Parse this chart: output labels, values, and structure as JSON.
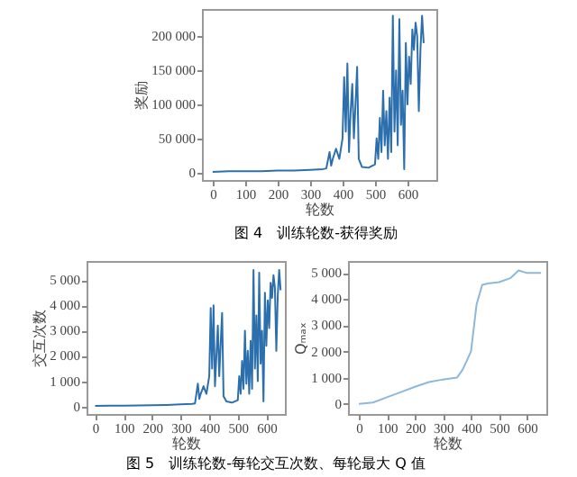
{
  "chart_data": [
    {
      "type": "line",
      "xlabel": "轮数",
      "ylabel": "奖励",
      "annotations": [
        "图 4　训练轮数-获得奖励"
      ],
      "x": [
        0,
        50,
        100,
        150,
        200,
        250,
        300,
        340,
        350,
        360,
        365,
        370,
        380,
        390,
        400,
        405,
        410,
        415,
        420,
        425,
        430,
        435,
        440,
        445,
        450,
        460,
        480,
        500,
        505,
        510,
        515,
        520,
        525,
        530,
        535,
        540,
        545,
        550,
        555,
        560,
        565,
        570,
        575,
        580,
        585,
        590,
        595,
        600,
        605,
        610,
        615,
        620,
        625,
        630,
        635,
        640,
        645,
        650
      ],
      "series": [
        {
          "color": "#2c6fad",
          "values": [
            1000,
            2000,
            2000,
            2000,
            3000,
            3000,
            4000,
            5000,
            6000,
            30000,
            10000,
            20000,
            35000,
            20000,
            50000,
            140000,
            60000,
            160000,
            30000,
            90000,
            130000,
            50000,
            100000,
            155000,
            20000,
            8000,
            7000,
            12000,
            50000,
            20000,
            80000,
            30000,
            120000,
            40000,
            90000,
            20000,
            110000,
            30000,
            230000,
            60000,
            150000,
            40000,
            225000,
            70000,
            120000,
            5000,
            190000,
            100000,
            170000,
            130000,
            210000,
            180000,
            220000,
            200000,
            90000,
            180000,
            230000,
            190000
          ]
        }
      ],
      "xlim": [
        -33,
        689
      ],
      "ylim": [
        -11000,
        240000
      ],
      "xticks": [
        0,
        100,
        200,
        300,
        400,
        500,
        600
      ],
      "yticks": [
        {
          "value": 0,
          "label": "0"
        },
        {
          "value": 50000,
          "label": "50 000"
        },
        {
          "value": 100000,
          "label": "100 000"
        },
        {
          "value": 150000,
          "label": "150 000"
        },
        {
          "value": 200000,
          "label": "200 000"
        }
      ]
    },
    {
      "type": "line",
      "xlabel": "轮数",
      "ylabel": "交互次数",
      "annotations": [
        "图 5　训练轮数-每轮交互次数、每轮最大 Q 值"
      ],
      "x": [
        0,
        50,
        100,
        150,
        200,
        250,
        300,
        340,
        350,
        360,
        365,
        370,
        380,
        390,
        400,
        405,
        410,
        415,
        420,
        425,
        430,
        435,
        440,
        445,
        450,
        460,
        480,
        500,
        505,
        510,
        515,
        520,
        525,
        530,
        535,
        540,
        545,
        550,
        555,
        560,
        565,
        570,
        575,
        580,
        585,
        590,
        595,
        600,
        605,
        610,
        615,
        620,
        625,
        630,
        635,
        640,
        645,
        650
      ],
      "series": [
        {
          "color": "#2c6fad",
          "values": [
            20,
            30,
            30,
            40,
            50,
            60,
            80,
            100,
            120,
            900,
            300,
            500,
            800,
            500,
            1200,
            3900,
            1500,
            4000,
            800,
            2000,
            3200,
            1200,
            2500,
            3700,
            400,
            200,
            150,
            250,
            1200,
            500,
            1800,
            700,
            3000,
            900,
            2200,
            500,
            2600,
            700,
            5400,
            1500,
            3600,
            1000,
            5300,
            1700,
            3000,
            200,
            4500,
            2400,
            4200,
            3100,
            4900,
            4300,
            5200,
            4700,
            2200,
            4400,
            5400,
            4600
          ]
        }
      ],
      "xlim": [
        -30,
        665
      ],
      "ylim": [
        -300,
        5760
      ],
      "xticks": [
        0,
        100,
        200,
        300,
        400,
        500,
        600
      ],
      "yticks": [
        {
          "value": 0,
          "label": "0"
        },
        {
          "value": 1000,
          "label": "1 000"
        },
        {
          "value": 2000,
          "label": "2 000"
        },
        {
          "value": 3000,
          "label": "3 000"
        },
        {
          "value": 4000,
          "label": "4 000"
        },
        {
          "value": 5000,
          "label": "5 000"
        }
      ]
    },
    {
      "type": "line",
      "xlabel": "轮数",
      "ylabel": "Qₘₐₓ",
      "x": [
        0,
        50,
        100,
        150,
        200,
        250,
        300,
        350,
        370,
        400,
        420,
        440,
        460,
        500,
        540,
        570,
        600,
        650
      ],
      "series": [
        {
          "color": "#8db8dc",
          "values": [
            0,
            50,
            250,
            450,
            650,
            830,
            930,
            1000,
            1300,
            2000,
            3800,
            4550,
            4600,
            4650,
            4800,
            5100,
            5000,
            5000
          ]
        }
      ],
      "xlim": [
        -39,
        669
      ],
      "ylim": [
        -390,
        5460
      ],
      "xticks": [
        0,
        100,
        200,
        300,
        400,
        500,
        600
      ],
      "yticks": [
        {
          "value": 0,
          "label": "0"
        },
        {
          "value": 1000,
          "label": "1 000"
        },
        {
          "value": 2000,
          "label": "2 000"
        },
        {
          "value": 3000,
          "label": "3 000"
        },
        {
          "value": 4000,
          "label": "4 000"
        },
        {
          "value": 5000,
          "label": "5 000"
        }
      ]
    }
  ]
}
